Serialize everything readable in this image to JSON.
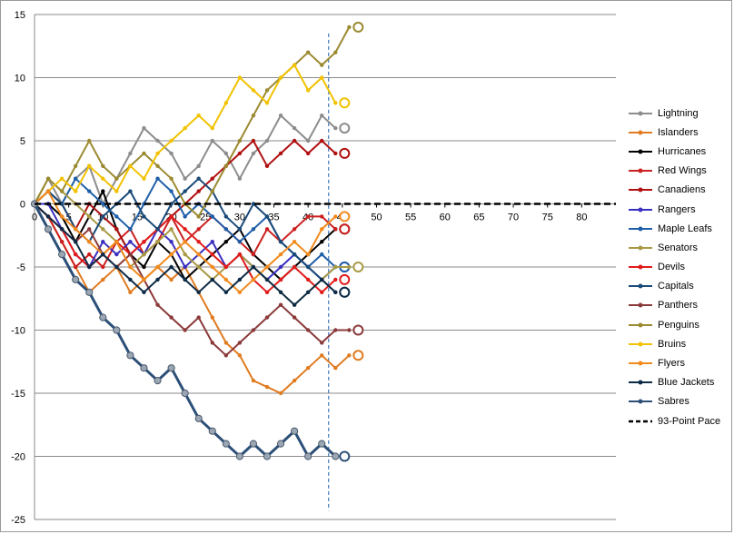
{
  "chart_data": {
    "type": "line",
    "title": "",
    "xlabel": "",
    "ylabel": "",
    "xlim": [
      0,
      85
    ],
    "ylim": [
      -25,
      15
    ],
    "x_ticks": [
      0,
      5,
      10,
      15,
      20,
      25,
      30,
      35,
      40,
      45,
      50,
      55,
      60,
      65,
      70,
      75,
      80
    ],
    "y_ticks": [
      15,
      10,
      5,
      0,
      -5,
      -10,
      -15,
      -20,
      -25
    ],
    "x_tick_labels": [
      "0",
      "5",
      "10",
      "15",
      "20",
      "25",
      "30",
      "35",
      "40",
      "45",
      "50",
      "55",
      "60",
      "65",
      "70",
      "75",
      "80"
    ],
    "y_tick_labels": [
      "15",
      "10",
      "5",
      "0",
      "-5",
      "-10",
      "-15",
      "-20",
      "-25"
    ],
    "grid": "horizontal",
    "legend_position": "right",
    "current_game_marker": 43,
    "series": [
      {
        "name": "Lightning",
        "color": "#8c8c8c",
        "x": [
          0,
          2,
          4,
          6,
          8,
          10,
          12,
          14,
          16,
          18,
          20,
          22,
          24,
          26,
          28,
          30,
          32,
          34,
          36,
          38,
          40,
          42,
          44
        ],
        "y": [
          0,
          2,
          0,
          2,
          3,
          0,
          2,
          4,
          6,
          5,
          4,
          2,
          3,
          5,
          4,
          2,
          4,
          5,
          7,
          6,
          5,
          7,
          6
        ]
      },
      {
        "name": "Islanders",
        "color": "#e07b20",
        "x": [
          0,
          2,
          4,
          6,
          8,
          10,
          12,
          14,
          16,
          18,
          20,
          22,
          24,
          26,
          28,
          30,
          32,
          34,
          36,
          38,
          40,
          42,
          44,
          46
        ],
        "y": [
          0,
          -1,
          -3,
          -5,
          -7,
          -6,
          -5,
          -7,
          -6,
          -5,
          -6,
          -5,
          -7,
          -9,
          -11,
          -12,
          -14,
          -14.5,
          -15,
          -14,
          -13,
          -12,
          -13,
          -12
        ]
      },
      {
        "name": "Hurricanes",
        "color": "#000000",
        "x": [
          0,
          2,
          4,
          6,
          8,
          10,
          12,
          14,
          16,
          18,
          20,
          22,
          24,
          26,
          28,
          30,
          32,
          34,
          36,
          38,
          40,
          42,
          44
        ],
        "y": [
          0,
          0,
          -1,
          -3,
          -1,
          1,
          -2,
          -4,
          -5,
          -3,
          -4,
          -6,
          -5,
          -4,
          -3,
          -2,
          -4,
          -5,
          -6,
          -5,
          -4,
          -3,
          -2
        ]
      },
      {
        "name": "Red Wings",
        "color": "#cc1f1f",
        "x": [
          0,
          2,
          4,
          6,
          8,
          10,
          12,
          14,
          16,
          18,
          20,
          22,
          24,
          26,
          28,
          30,
          32,
          34,
          36,
          38,
          40,
          42,
          44
        ],
        "y": [
          0,
          -1,
          -3,
          -5,
          -4,
          -5,
          -3,
          -2,
          -4,
          -3,
          -1,
          -3,
          -2,
          -1,
          -2,
          -3,
          -4,
          -2,
          -3,
          -2,
          -1,
          -1,
          -2
        ]
      },
      {
        "name": "Canadiens",
        "color": "#b01010",
        "x": [
          0,
          2,
          4,
          6,
          8,
          10,
          12,
          14,
          16,
          18,
          20,
          22,
          24,
          26,
          28,
          30,
          32,
          34,
          36,
          38,
          40,
          42,
          44
        ],
        "y": [
          0,
          1,
          0,
          -2,
          0,
          -1,
          -2,
          -4,
          -3,
          -2,
          -1,
          0,
          1,
          2,
          3,
          4,
          5,
          3,
          4,
          5,
          4,
          5,
          4
        ]
      },
      {
        "name": "Rangers",
        "color": "#3a2fbf",
        "x": [
          0,
          2,
          4,
          6,
          8,
          10,
          12,
          14,
          16,
          18,
          20,
          22,
          24,
          26,
          28,
          30,
          32,
          34,
          36,
          38,
          40,
          42,
          44
        ],
        "y": [
          0,
          0,
          -2,
          -4,
          -5,
          -3,
          -4,
          -3,
          -4,
          -2,
          -3,
          -5,
          -4,
          -3,
          -5,
          -4,
          -5,
          -6,
          -5,
          -4,
          -5,
          -6,
          -5
        ]
      },
      {
        "name": "Maple Leafs",
        "color": "#1f5fa8",
        "x": [
          0,
          2,
          4,
          6,
          8,
          10,
          12,
          14,
          16,
          18,
          20,
          22,
          24,
          26,
          28,
          30,
          32,
          34,
          36,
          38,
          40,
          42,
          44
        ],
        "y": [
          0,
          1,
          0,
          2,
          1,
          0,
          -1,
          -2,
          0,
          2,
          1,
          -1,
          0,
          -1,
          -2,
          -3,
          -2,
          -1,
          -3,
          -4,
          -5,
          -4,
          -5
        ]
      },
      {
        "name": "Senators",
        "color": "#a89a45",
        "x": [
          0,
          2,
          4,
          6,
          8,
          10,
          12,
          14,
          16,
          18,
          20,
          22,
          24,
          26,
          28,
          30,
          32,
          34,
          36,
          38,
          40,
          42,
          44,
          46
        ],
        "y": [
          0,
          2,
          1,
          0,
          -1,
          -2,
          -3,
          -5,
          -4,
          -3,
          -2,
          -4,
          -5,
          -6,
          -5,
          -4,
          -5,
          -6,
          -7,
          -8,
          -7,
          -6,
          -5,
          -5
        ]
      },
      {
        "name": "Devils",
        "color": "#e21b1b",
        "x": [
          0,
          2,
          4,
          6,
          8,
          10,
          12,
          14,
          16,
          18,
          20,
          22,
          24,
          26,
          28,
          30,
          32,
          34,
          36,
          38,
          40,
          42,
          44
        ],
        "y": [
          0,
          -1,
          -2,
          -4,
          -5,
          -4,
          -3,
          -4,
          -3,
          -2,
          -1,
          -2,
          -3,
          -4,
          -5,
          -4,
          -6,
          -7,
          -6,
          -5,
          -6,
          -7,
          -6
        ]
      },
      {
        "name": "Capitals",
        "color": "#1a4a78",
        "x": [
          0,
          2,
          4,
          6,
          8,
          10,
          12,
          14,
          16,
          18,
          20,
          22,
          24,
          26,
          28,
          30,
          32,
          34,
          36,
          38,
          40,
          42,
          44
        ],
        "y": [
          0,
          1,
          0,
          -2,
          -3,
          -1,
          0,
          1,
          -1,
          -2,
          0,
          1,
          2,
          1,
          -1,
          -2,
          0,
          -1,
          -3,
          -4,
          -5,
          -6,
          -7
        ]
      },
      {
        "name": "Panthers",
        "color": "#8b3a3a",
        "x": [
          0,
          2,
          4,
          6,
          8,
          10,
          12,
          14,
          16,
          18,
          20,
          22,
          24,
          26,
          28,
          30,
          32,
          34,
          36,
          38,
          40,
          42,
          44,
          46
        ],
        "y": [
          0,
          -1,
          -2,
          -3,
          -2,
          -4,
          -5,
          -4,
          -6,
          -8,
          -9,
          -10,
          -9,
          -11,
          -12,
          -11,
          -10,
          -9,
          -8,
          -9,
          -10,
          -11,
          -10,
          -10
        ]
      },
      {
        "name": "Penguins",
        "color": "#9b8a30",
        "x": [
          0,
          2,
          4,
          6,
          8,
          10,
          12,
          14,
          16,
          18,
          20,
          22,
          24,
          26,
          28,
          30,
          32,
          34,
          36,
          38,
          40,
          42,
          44,
          46
        ],
        "y": [
          0,
          2,
          1,
          3,
          5,
          3,
          2,
          3,
          4,
          3,
          2,
          0,
          -1,
          1,
          3,
          5,
          7,
          9,
          10,
          11,
          12,
          11,
          12,
          14
        ]
      },
      {
        "name": "Bruins",
        "color": "#f2c200",
        "x": [
          0,
          2,
          4,
          6,
          8,
          10,
          12,
          14,
          16,
          18,
          20,
          22,
          24,
          26,
          28,
          30,
          32,
          34,
          36,
          38,
          40,
          42,
          44
        ],
        "y": [
          0,
          1,
          2,
          1,
          3,
          2,
          1,
          3,
          2,
          4,
          5,
          6,
          7,
          6,
          8,
          10,
          9,
          8,
          10,
          11,
          9,
          10,
          8
        ]
      },
      {
        "name": "Flyers",
        "color": "#f28a1e",
        "x": [
          0,
          2,
          4,
          6,
          8,
          10,
          12,
          14,
          16,
          18,
          20,
          22,
          24,
          26,
          28,
          30,
          32,
          34,
          36,
          38,
          40,
          42,
          44
        ],
        "y": [
          0,
          1,
          -1,
          -2,
          -3,
          -4,
          -3,
          -5,
          -6,
          -5,
          -4,
          -3,
          -4,
          -5,
          -6,
          -7,
          -6,
          -5,
          -4,
          -3,
          -4,
          -2,
          -1
        ]
      },
      {
        "name": "Blue Jackets",
        "color": "#0d2b46",
        "x": [
          0,
          2,
          4,
          6,
          8,
          10,
          12,
          14,
          16,
          18,
          20,
          22,
          24,
          26,
          28,
          30,
          32,
          34,
          36,
          38,
          40,
          42,
          44
        ],
        "y": [
          0,
          -1,
          -2,
          -3,
          -5,
          -4,
          -5,
          -6,
          -7,
          -6,
          -5,
          -6,
          -7,
          -6,
          -7,
          -6,
          -5,
          -6,
          -7,
          -8,
          -7,
          -6,
          -7
        ]
      },
      {
        "name": "Sabres",
        "color": "#2c4f78",
        "x": [
          0,
          2,
          4,
          6,
          8,
          10,
          12,
          14,
          16,
          18,
          20,
          22,
          24,
          26,
          28,
          30,
          32,
          34,
          36,
          38,
          40,
          42,
          44
        ],
        "y": [
          0,
          -2,
          -4,
          -6,
          -7,
          -9,
          -10,
          -12,
          -13,
          -14,
          -13,
          -15,
          -17,
          -18,
          -19,
          -20,
          -19,
          -20,
          -19,
          -18,
          -20,
          -19,
          -20
        ]
      },
      {
        "name": "93-Point Pace",
        "color": "#000000",
        "dashed": true,
        "x": [
          0,
          85
        ],
        "y": [
          0,
          0
        ]
      }
    ]
  }
}
